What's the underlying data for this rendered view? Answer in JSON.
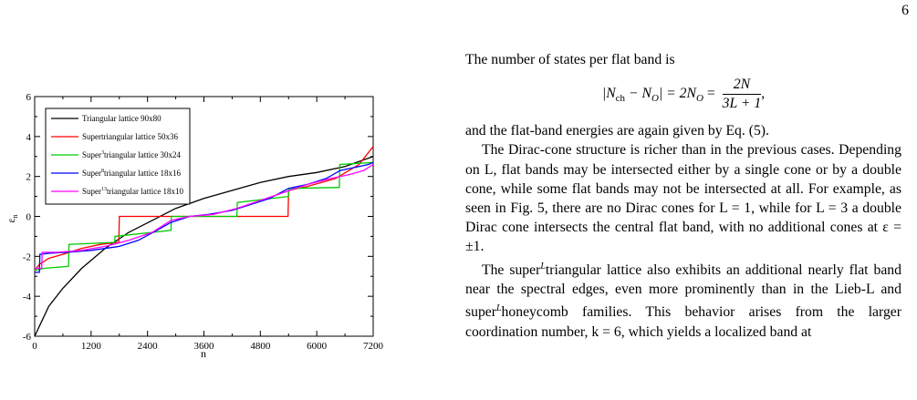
{
  "page": {
    "number": "6"
  },
  "figure": {
    "chart_data": {
      "type": "line",
      "xlabel": "n",
      "ylabel": "ε",
      "ylabel_sub": "n",
      "xlim": [
        0,
        7200
      ],
      "ylim": [
        -6,
        6
      ],
      "xticks": [
        0,
        1200,
        2400,
        3600,
        4800,
        6000,
        7200
      ],
      "yticks": [
        -6,
        -4,
        -2,
        0,
        2,
        4,
        6
      ],
      "legend_position": "top-left",
      "series": [
        {
          "name": "Triangular lattice 90x80",
          "color": "#000000",
          "x": [
            0,
            300,
            600,
            1000,
            1500,
            2000,
            2500,
            3000,
            3600,
            4200,
            4800,
            5400,
            6000,
            6600,
            7200
          ],
          "y": [
            -6.0,
            -4.5,
            -3.6,
            -2.6,
            -1.6,
            -0.8,
            -0.2,
            0.4,
            0.9,
            1.3,
            1.7,
            2.0,
            2.2,
            2.5,
            3.0
          ]
        },
        {
          "name": "Supertriangular lattice 50x36",
          "color": "#ff0000",
          "x": [
            0,
            100,
            300,
            600,
            1000,
            1400,
            1790,
            1800,
            2700,
            2800,
            3500,
            4500,
            5390,
            5400,
            5800,
            6400,
            6900,
            7200
          ],
          "y": [
            -2.7,
            -2.4,
            -2.1,
            -1.9,
            -1.6,
            -1.4,
            -1.3,
            0.0,
            0.0,
            0.0,
            0.0,
            0.0,
            0.0,
            1.3,
            1.5,
            1.9,
            2.6,
            3.5
          ]
        },
        {
          "name": "Super3triangular lattice 30x24",
          "color": "#00cc00",
          "x": [
            0,
            200,
            720,
            730,
            1700,
            1710,
            2900,
            2910,
            4300,
            4310,
            5400,
            5410,
            6480,
            6490,
            7200
          ],
          "y": [
            -2.7,
            -2.6,
            -2.5,
            -1.4,
            -1.3,
            -1.0,
            -0.7,
            0.0,
            0.0,
            0.7,
            1.0,
            1.4,
            1.45,
            2.6,
            2.7
          ]
        },
        {
          "name": "Super8triangular lattice 18x16",
          "color": "#0000ff",
          "x": [
            0,
            100,
            110,
            300,
            700,
            1200,
            1800,
            2200,
            2600,
            2900,
            3300,
            3700,
            4200,
            4600,
            5000,
            5400,
            5800,
            6200,
            6500,
            6900,
            7100,
            7200
          ],
          "y": [
            -2.8,
            -2.8,
            -1.9,
            -1.85,
            -1.8,
            -1.7,
            -1.5,
            -1.2,
            -0.7,
            -0.3,
            0.0,
            0.1,
            0.3,
            0.6,
            0.9,
            1.4,
            1.6,
            1.9,
            2.3,
            2.5,
            2.6,
            2.7
          ]
        },
        {
          "name": "Super13triangular lattice 18x10",
          "color": "#ff00ff",
          "x": [
            0,
            150,
            160,
            500,
            1000,
            1500,
            2000,
            2500,
            2900,
            3300,
            3800,
            4300,
            4800,
            5300,
            5800,
            6300,
            6700,
            7000,
            7200
          ],
          "y": [
            -2.6,
            -2.6,
            -1.8,
            -1.8,
            -1.7,
            -1.5,
            -1.2,
            -0.8,
            -0.2,
            0.0,
            0.1,
            0.4,
            0.8,
            1.2,
            1.6,
            1.9,
            2.1,
            2.3,
            2.6
          ]
        }
      ]
    }
  },
  "text": {
    "p1": "The number of states per flat band is",
    "eq_lhs_1": "|N",
    "eq_sub_ch": "ch",
    "eq_minus": " − N",
    "eq_sub_o1": "O",
    "eq_mid": "| = 2N",
    "eq_sub_o2": "O",
    "eq_eq": " = ",
    "eq_num": "2N",
    "eq_den": "3L + 1",
    "eq_end": ",",
    "p2": "and the flat-band energies are again given by Eq. (5).",
    "p3": "The Dirac-cone structure is richer than in the previous cases. Depending on L, flat bands may be intersected either by a single cone or by a double cone, while some flat bands may not be intersected at all. For example, as seen in Fig. 5, there are no Dirac cones for L = 1, while for L = 3 a double Dirac cone intersects the central flat band, with no additional cones at ε = ±1.",
    "p4_a": "The super",
    "p4_sup1": "L",
    "p4_b": "triangular lattice also exhibits an additional nearly flat band near the spectral edges, even more prominently than in the Lieb-L and super",
    "p4_sup2": "L",
    "p4_c": "honeycomb families. This behavior arises from the larger coordination number, k = 6, which yields a localized band at"
  }
}
